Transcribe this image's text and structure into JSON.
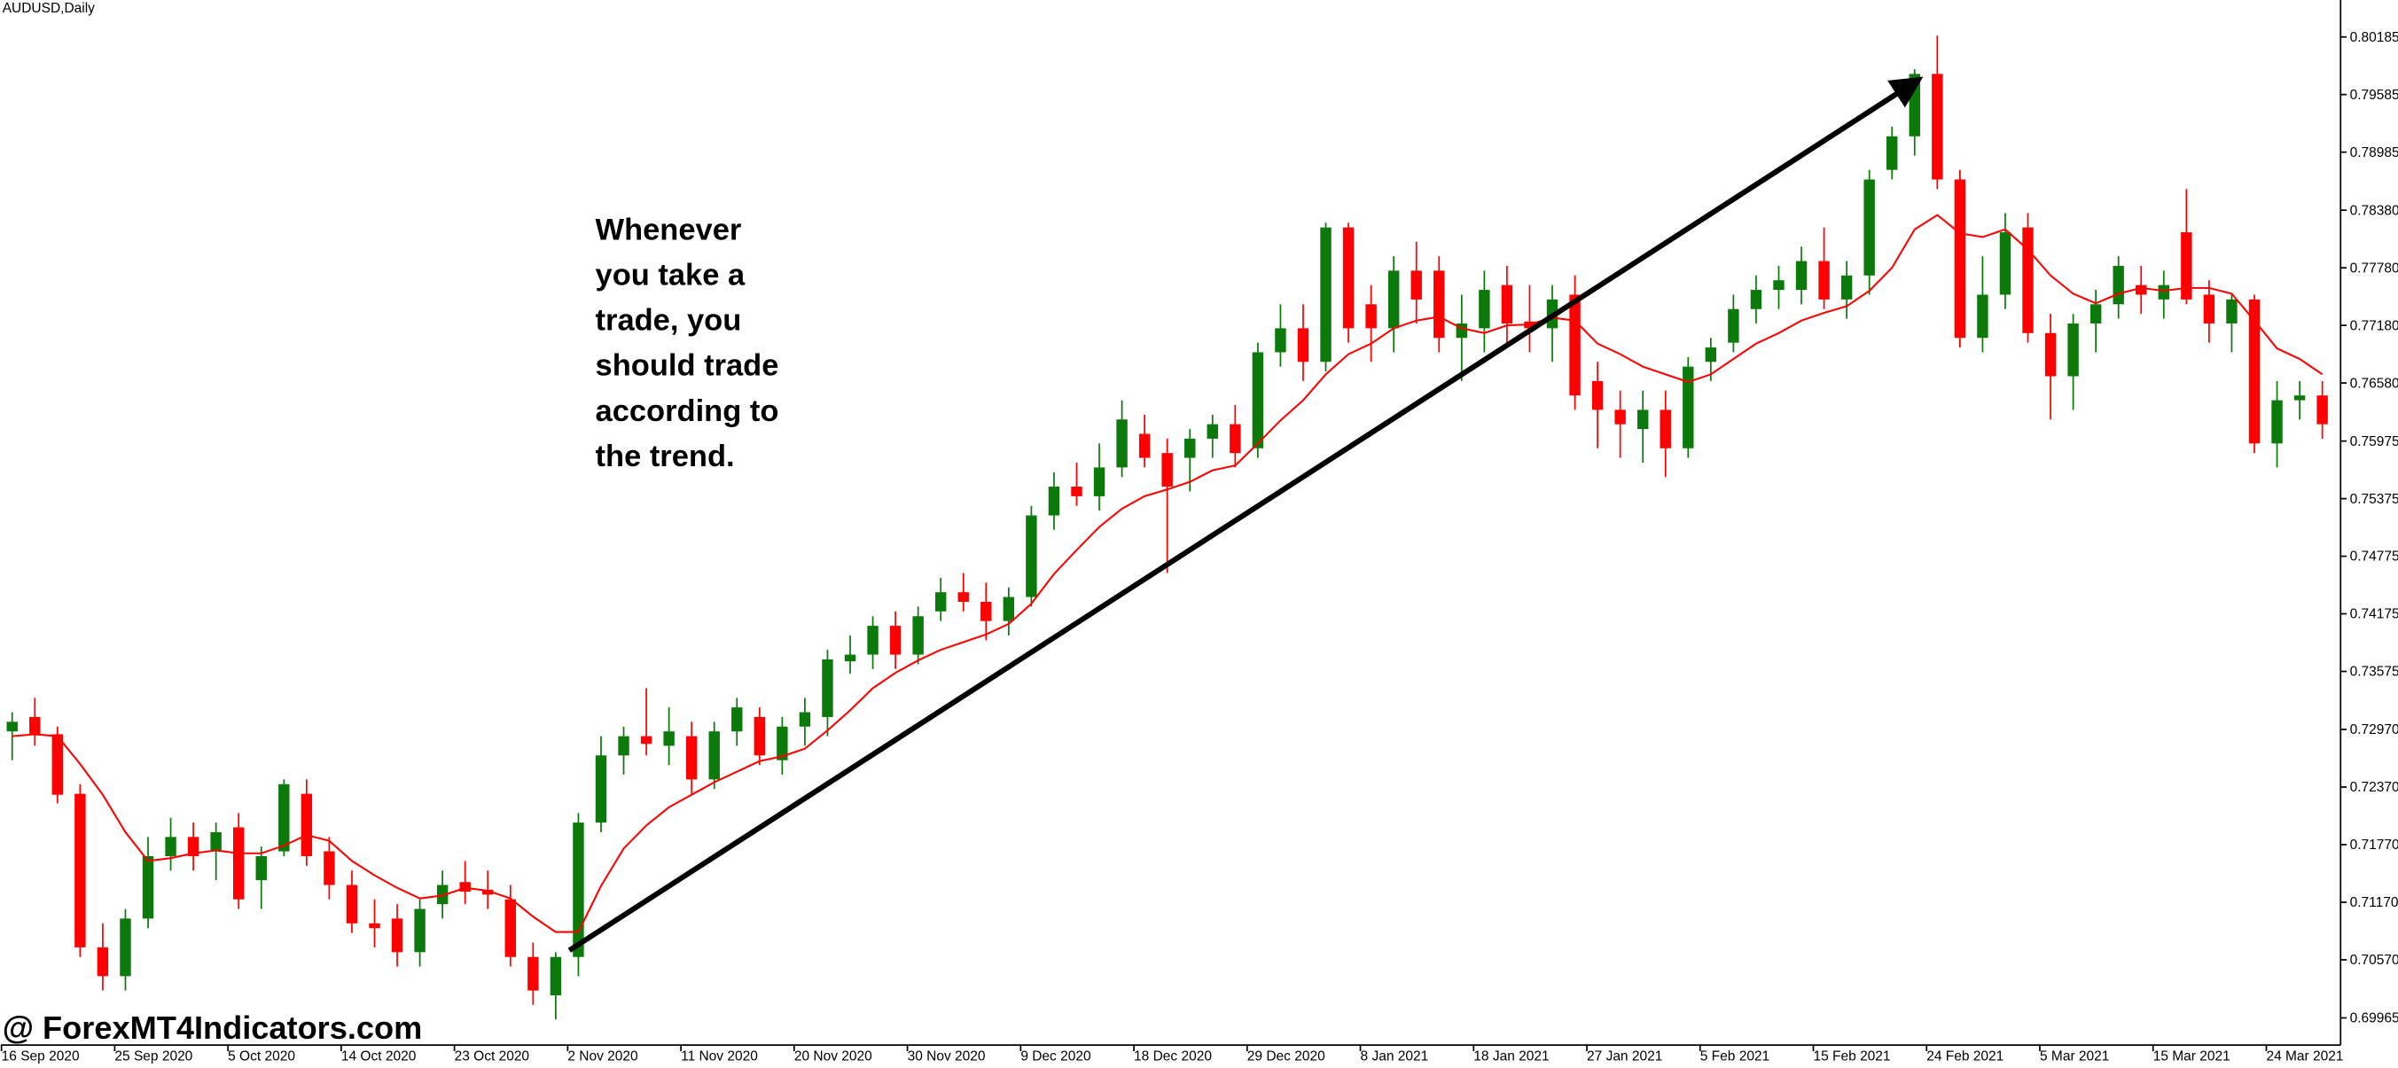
{
  "chart_data": {
    "type": "candlestick",
    "title": "AUDUSD,Daily",
    "annotation": [
      "Whenever",
      "you take a",
      "trade, you",
      "should trade",
      "according to",
      "the trend."
    ],
    "watermark": "@ ForexMT4Indicators.com",
    "up_color": "#0b7a0b",
    "down_color": "#ff0000",
    "categories": [
      "16 Sep 2020",
      null,
      null,
      null,
      null,
      "25 Sep 2020",
      null,
      null,
      null,
      null,
      "5 Oct 2020",
      null,
      null,
      null,
      null,
      "14 Oct 2020",
      null,
      null,
      null,
      null,
      "23 Oct 2020",
      null,
      null,
      null,
      null,
      "2 Nov 2020",
      null,
      null,
      null,
      null,
      "11 Nov 2020",
      null,
      null,
      null,
      null,
      "20 Nov 2020",
      null,
      null,
      null,
      null,
      "30 Nov 2020",
      null,
      null,
      null,
      null,
      "9 Dec 2020",
      null,
      null,
      null,
      null,
      "18 Dec 2020",
      null,
      null,
      null,
      null,
      "29 Dec 2020",
      null,
      null,
      null,
      null,
      "8 Jan 2021",
      null,
      null,
      null,
      null,
      "18 Jan 2021",
      null,
      null,
      null,
      null,
      "27 Jan 2021",
      null,
      null,
      null,
      null,
      "5 Feb 2021",
      null,
      null,
      null,
      null,
      "15 Feb 2021",
      null,
      null,
      null,
      null,
      "24 Feb 2021",
      null,
      null,
      null,
      null,
      "5 Mar 2021",
      null,
      null,
      null,
      null,
      "15 Mar 2021",
      null,
      null,
      null,
      null,
      "24 Mar 2021",
      null,
      null
    ],
    "open": [
      0.7295,
      0.731,
      0.7292,
      0.723,
      0.707,
      0.704,
      0.71,
      0.7165,
      0.7185,
      0.717,
      0.7195,
      0.714,
      0.717,
      0.723,
      0.717,
      0.7135,
      0.7095,
      0.71,
      0.7065,
      0.7115,
      0.7138,
      0.713,
      0.712,
      0.706,
      0.702,
      0.706,
      0.72,
      0.727,
      0.729,
      0.728,
      0.729,
      0.7245,
      0.7295,
      0.731,
      0.7265,
      0.73,
      0.731,
      0.7368,
      0.7375,
      0.7405,
      0.7375,
      0.742,
      0.744,
      0.743,
      0.741,
      0.7435,
      0.752,
      0.755,
      0.754,
      0.757,
      0.7605,
      0.7585,
      0.758,
      0.76,
      0.7615,
      0.759,
      0.769,
      0.7715,
      0.768,
      0.782,
      0.774,
      0.7715,
      0.7775,
      0.7775,
      0.7705,
      0.7715,
      0.776,
      0.7722,
      0.7715,
      0.775,
      0.766,
      0.763,
      0.761,
      0.763,
      0.759,
      0.768,
      0.77,
      0.7735,
      0.7755,
      0.7755,
      0.7785,
      0.7745,
      0.777,
      0.788,
      0.7915,
      0.798,
      0.787,
      0.7705,
      0.775,
      0.782,
      0.771,
      0.7665,
      0.772,
      0.774,
      0.776,
      0.7745,
      0.7815,
      0.775,
      0.772,
      0.7745,
      0.7595,
      0.764,
      0.7645
    ],
    "high": [
      0.7315,
      0.733,
      0.73,
      0.724,
      0.7095,
      0.711,
      0.7185,
      0.7205,
      0.72,
      0.72,
      0.721,
      0.7175,
      0.7245,
      0.7245,
      0.7185,
      0.715,
      0.712,
      0.7115,
      0.712,
      0.715,
      0.716,
      0.715,
      0.7135,
      0.7075,
      0.7065,
      0.721,
      0.729,
      0.73,
      0.734,
      0.732,
      0.7305,
      0.7305,
      0.733,
      0.732,
      0.731,
      0.733,
      0.738,
      0.7395,
      0.7415,
      0.742,
      0.7425,
      0.7455,
      0.746,
      0.745,
      0.7445,
      0.753,
      0.7565,
      0.7575,
      0.7595,
      0.764,
      0.7625,
      0.76,
      0.761,
      0.7625,
      0.7635,
      0.77,
      0.774,
      0.774,
      0.7825,
      0.7825,
      0.776,
      0.779,
      0.7805,
      0.779,
      0.775,
      0.7775,
      0.778,
      0.776,
      0.776,
      0.777,
      0.768,
      0.765,
      0.765,
      0.765,
      0.7685,
      0.7705,
      0.775,
      0.777,
      0.778,
      0.78,
      0.782,
      0.7785,
      0.788,
      0.7925,
      0.7985,
      0.802,
      0.788,
      0.779,
      0.7835,
      0.7835,
      0.773,
      0.773,
      0.7755,
      0.779,
      0.778,
      0.7775,
      0.786,
      0.7765,
      0.775,
      0.775,
      0.766,
      0.766,
      0.766
    ],
    "low": [
      0.7265,
      0.728,
      0.722,
      0.706,
      0.7025,
      0.7025,
      0.709,
      0.715,
      0.715,
      0.714,
      0.711,
      0.711,
      0.7165,
      0.7155,
      0.712,
      0.7085,
      0.707,
      0.705,
      0.705,
      0.71,
      0.7115,
      0.711,
      0.705,
      0.701,
      0.6995,
      0.704,
      0.719,
      0.725,
      0.727,
      0.726,
      0.723,
      0.7235,
      0.728,
      0.726,
      0.725,
      0.728,
      0.729,
      0.7355,
      0.736,
      0.736,
      0.7365,
      0.741,
      0.742,
      0.739,
      0.7395,
      0.7425,
      0.7505,
      0.753,
      0.7525,
      0.756,
      0.757,
      0.746,
      0.7545,
      0.758,
      0.757,
      0.758,
      0.7675,
      0.766,
      0.767,
      0.77,
      0.768,
      0.769,
      0.772,
      0.769,
      0.766,
      0.769,
      0.77,
      0.769,
      0.768,
      0.763,
      0.759,
      0.758,
      0.7575,
      0.756,
      0.758,
      0.766,
      0.769,
      0.772,
      0.7735,
      0.774,
      0.7735,
      0.7725,
      0.775,
      0.787,
      0.7895,
      0.786,
      0.7695,
      0.769,
      0.7735,
      0.77,
      0.762,
      0.763,
      0.769,
      0.7725,
      0.773,
      0.7725,
      0.774,
      0.77,
      0.769,
      0.7585,
      0.757,
      0.762,
      0.76
    ],
    "close": [
      0.7305,
      0.7292,
      0.7229,
      0.707,
      0.704,
      0.71,
      0.7165,
      0.7185,
      0.7165,
      0.719,
      0.712,
      0.7165,
      0.724,
      0.7165,
      0.7135,
      0.7095,
      0.709,
      0.7065,
      0.711,
      0.7135,
      0.7128,
      0.7125,
      0.706,
      0.7025,
      0.706,
      0.72,
      0.727,
      0.729,
      0.7282,
      0.7295,
      0.7245,
      0.7295,
      0.732,
      0.727,
      0.73,
      0.7315,
      0.737,
      0.7375,
      0.7405,
      0.7375,
      0.7415,
      0.744,
      0.743,
      0.741,
      0.7435,
      0.752,
      0.755,
      0.754,
      0.757,
      0.762,
      0.758,
      0.755,
      0.76,
      0.7615,
      0.7585,
      0.769,
      0.7715,
      0.768,
      0.782,
      0.7715,
      0.7715,
      0.7775,
      0.7745,
      0.7705,
      0.772,
      0.7755,
      0.772,
      0.7715,
      0.7745,
      0.7645,
      0.763,
      0.7615,
      0.763,
      0.759,
      0.7675,
      0.7695,
      0.7735,
      0.7755,
      0.7765,
      0.7785,
      0.7745,
      0.777,
      0.787,
      0.7915,
      0.798,
      0.787,
      0.7705,
      0.775,
      0.7815,
      0.771,
      0.7665,
      0.772,
      0.774,
      0.778,
      0.775,
      0.776,
      0.7745,
      0.772,
      0.7745,
      0.7595,
      0.764,
      0.7645,
      0.7615
    ],
    "ma": {
      "color": "#ff0000",
      "values": [
        0.729,
        0.7292,
        0.729,
        0.7261,
        0.7229,
        0.719,
        0.716,
        0.7163,
        0.7168,
        0.7171,
        0.7168,
        0.7168,
        0.7176,
        0.7187,
        0.7181,
        0.716,
        0.7145,
        0.7132,
        0.7121,
        0.7124,
        0.7132,
        0.7129,
        0.7121,
        0.7102,
        0.7086,
        0.7086,
        0.7134,
        0.7173,
        0.7197,
        0.7216,
        0.7229,
        0.7242,
        0.7253,
        0.7264,
        0.7269,
        0.7277,
        0.7296,
        0.7317,
        0.734,
        0.7356,
        0.7369,
        0.738,
        0.7388,
        0.7396,
        0.7407,
        0.7428,
        0.7459,
        0.7484,
        0.7508,
        0.7527,
        0.754,
        0.7547,
        0.7555,
        0.7567,
        0.7572,
        0.7595,
        0.7619,
        0.764,
        0.7667,
        0.7688,
        0.7699,
        0.7715,
        0.7723,
        0.7727,
        0.7715,
        0.771,
        0.7718,
        0.7719,
        0.7726,
        0.7723,
        0.7699,
        0.7688,
        0.7675,
        0.7667,
        0.7659,
        0.7667,
        0.7683,
        0.7699,
        0.771,
        0.7723,
        0.7731,
        0.7738,
        0.7754,
        0.7778,
        0.7818,
        0.7833,
        0.7814,
        0.781,
        0.7818,
        0.7797,
        0.777,
        0.7751,
        0.7741,
        0.7751,
        0.7757,
        0.7754,
        0.7757,
        0.7757,
        0.7751,
        0.7723,
        0.7694,
        0.7683,
        0.7667
      ]
    },
    "ylim": [
      0.6965,
      0.8057
    ],
    "yticks": [
      0.80185,
      0.79585,
      0.78985,
      {
        "value": 0.7838,
        "label": "0.78380"
      },
      {
        "value": 0.7778,
        "label": "0.77780"
      },
      {
        "value": 0.7718,
        "label": "0.77180"
      },
      {
        "value": 0.7658,
        "label": "0.76580"
      },
      0.75975,
      0.75375,
      0.74775,
      0.74175,
      0.73575,
      {
        "value": 0.7297,
        "label": "0.72970"
      },
      {
        "value": 0.7237,
        "label": "0.72370"
      },
      {
        "value": 0.7177,
        "label": "0.71770"
      },
      {
        "value": 0.7117,
        "label": "0.71170"
      },
      {
        "value": 0.7057,
        "label": "0.70570"
      },
      0.69965
    ]
  }
}
